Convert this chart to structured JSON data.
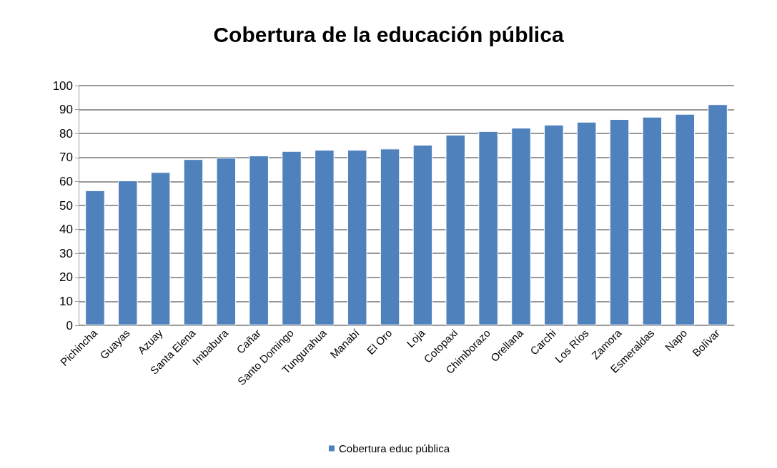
{
  "chart_data": {
    "type": "bar",
    "title": "Cobertura de la educación pública",
    "categories": [
      "Pichincha",
      "Guayas",
      "Azuay",
      "Santa Elena",
      "Imbabura",
      "Cañar",
      "Santo Domingo",
      "Tungurahua",
      "Manabí",
      "El Oro",
      "Loja",
      "Cotopaxi",
      "Chimborazo",
      "Orellana",
      "Carchi",
      "Los Ríos",
      "Zamora",
      "Esmeraldas",
      "Napo",
      "Bolívar"
    ],
    "series": [
      {
        "name": "Cobertura educ pública",
        "color": "#4f81bd",
        "values": [
          56.3,
          60.4,
          63.9,
          69.3,
          69.9,
          70.8,
          72.7,
          73.2,
          73.2,
          73.7,
          75.3,
          79.5,
          81.0,
          82.4,
          83.7,
          84.9,
          86.0,
          87.0,
          88.2,
          92.2
        ]
      }
    ],
    "ylim": [
      0,
      100
    ],
    "yticks": [
      0,
      10,
      20,
      30,
      40,
      50,
      60,
      70,
      80,
      90,
      100
    ],
    "grid": "y",
    "legend": "bottom"
  }
}
